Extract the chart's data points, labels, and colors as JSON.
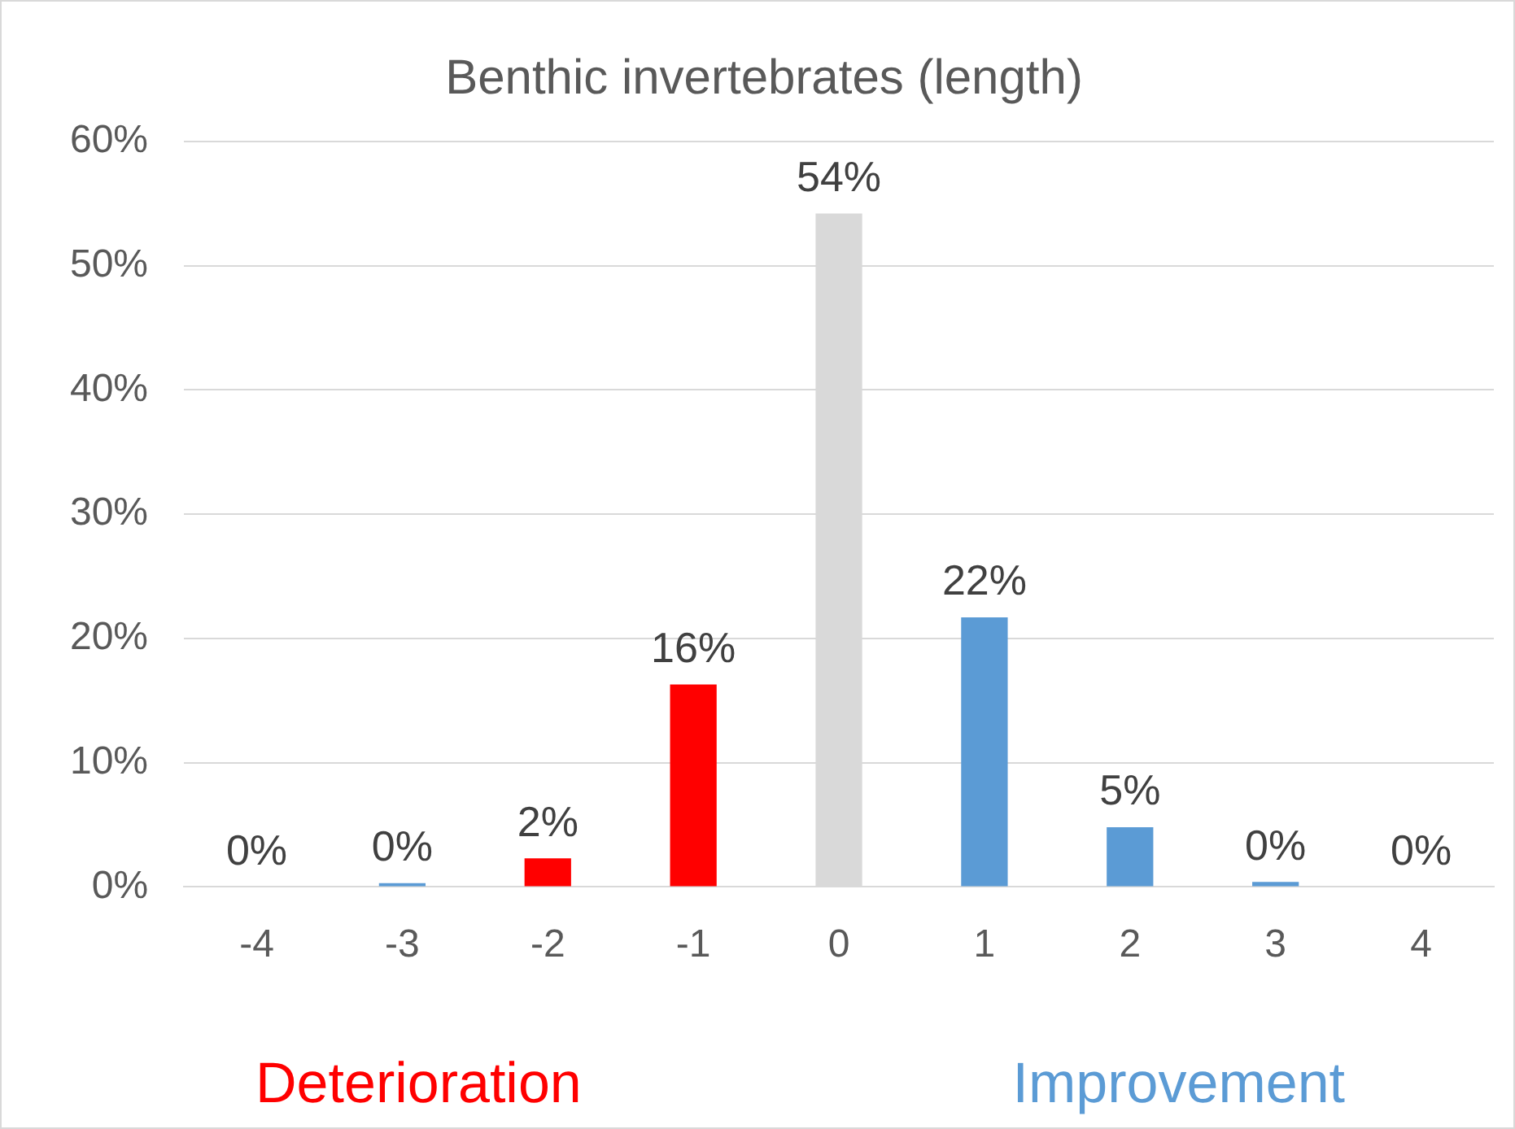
{
  "chart_data": {
    "type": "bar",
    "title": "Benthic invertebrates (length)",
    "categories": [
      "-4",
      "-3",
      "-2",
      "-1",
      "0",
      "1",
      "2",
      "3",
      "4"
    ],
    "values": [
      0,
      0.3,
      2.3,
      16.3,
      54.2,
      21.7,
      4.8,
      0.4,
      0
    ],
    "colors": [
      "#5b9bd5",
      "#5b9bd5",
      "#ff0000",
      "#ff0000",
      "#d9d9d9",
      "#5b9bd5",
      "#5b9bd5",
      "#5b9bd5",
      "#5b9bd5"
    ],
    "value_labels": [
      "0%",
      "0%",
      "2%",
      "16%",
      "54%",
      "22%",
      "5%",
      "0%",
      "0%"
    ],
    "ylim": [
      0,
      60
    ],
    "yticks": [
      {
        "value": 0,
        "label": "0%"
      },
      {
        "value": 10,
        "label": "10%"
      },
      {
        "value": 20,
        "label": "20%"
      },
      {
        "value": 30,
        "label": "30%"
      },
      {
        "value": 40,
        "label": "40%"
      },
      {
        "value": 50,
        "label": "50%"
      },
      {
        "value": 60,
        "label": "60%"
      }
    ],
    "grid": "y",
    "legend": false,
    "annotations": [
      "Deterioration",
      "Improvement"
    ]
  }
}
